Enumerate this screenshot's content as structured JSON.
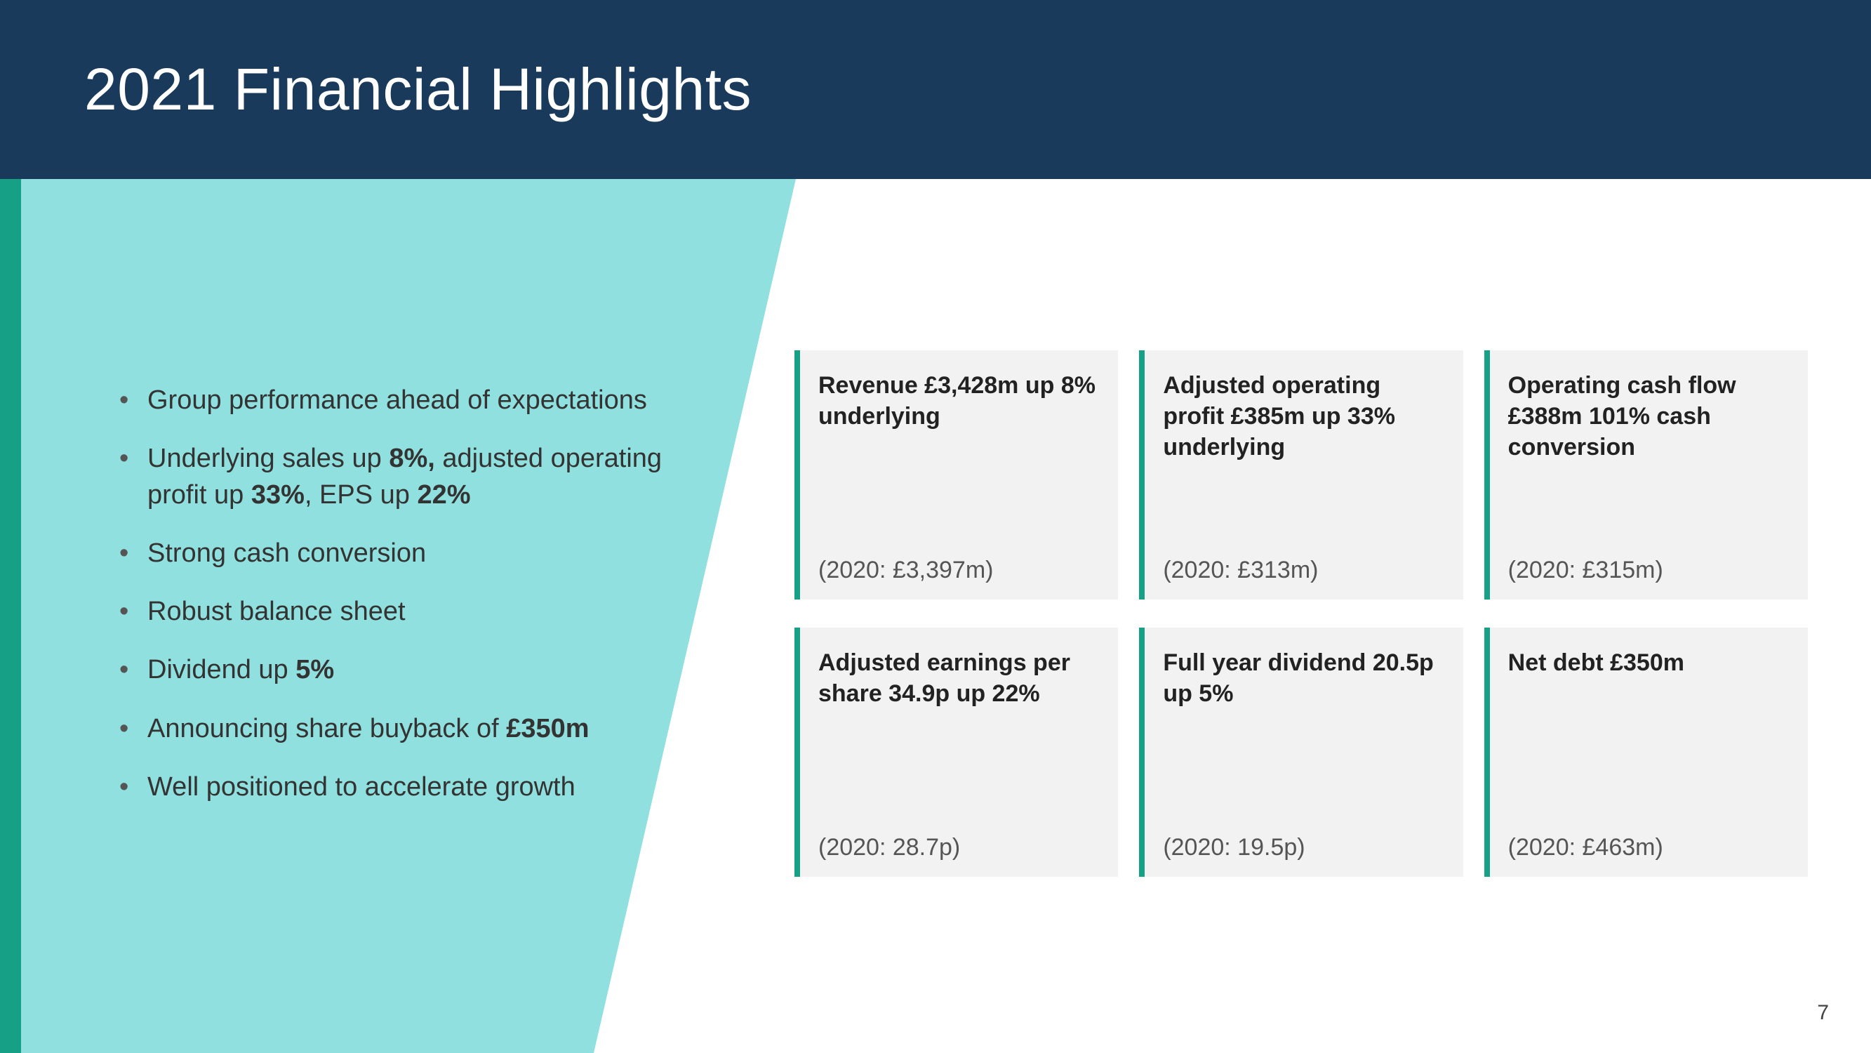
{
  "colors": {
    "header_bg": "#1a3a5c",
    "teal_strip": "#16a085",
    "teal_shape": "#8fe0de",
    "card_bg": "#f2f2f2",
    "card_border": "#16a085",
    "page_bg": "#ffffff"
  },
  "header": {
    "title": "2021 Financial Highlights"
  },
  "bullets": {
    "items": [
      {
        "html": "Group performance ahead of expectations"
      },
      {
        "html": "Underlying sales up <strong>8%,</strong> adjusted operating profit up <strong>33%</strong>, EPS up <strong>22%</strong>"
      },
      {
        "html": "Strong cash conversion"
      },
      {
        "html": "Robust balance sheet"
      },
      {
        "html": "Dividend up <strong>5%</strong>"
      },
      {
        "html": "Announcing share buyback of <strong>£350m</strong>"
      },
      {
        "html": "Well positioned to accelerate growth"
      }
    ]
  },
  "cards": [
    {
      "title": "Revenue £3,428m up 8% underlying",
      "prev": "(2020: £3,397m)"
    },
    {
      "title": "Adjusted operating profit £385m up 33% underlying",
      "prev": "(2020: £313m)"
    },
    {
      "title": "Operating cash flow £388m 101% cash conversion",
      "prev": "(2020: £315m)"
    },
    {
      "title": "Adjusted earnings per share 34.9p up 22%",
      "prev": "(2020: 28.7p)"
    },
    {
      "title": "Full year dividend 20.5p up 5%",
      "prev": "(2020: 19.5p)"
    },
    {
      "title": "Net debt £350m",
      "prev": "(2020: £463m)"
    }
  ],
  "page_number": "7"
}
